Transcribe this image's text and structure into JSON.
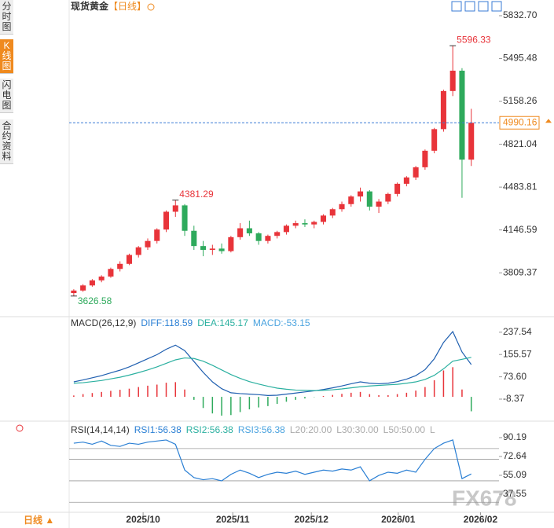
{
  "header": {
    "title": "现货黄金",
    "period": "【日线】"
  },
  "sidebar": {
    "tabs": [
      "分时图",
      "K线图",
      "闪电图",
      "合约资料"
    ]
  },
  "footer": {
    "period": "日线 ▲"
  },
  "watermark": "FX678",
  "chart_data": [
    {
      "type": "candlestick",
      "xlim": [
        -0.5,
        46
      ],
      "ylim": [
        3483,
        5882
      ],
      "yticks": [
        {
          "value": 5832.7,
          "label": "5832.70"
        },
        5495.48,
        5158.26,
        4821.04,
        4483.81,
        4146.59,
        3809.37
      ],
      "open": [
        3650,
        3670,
        3710,
        3750,
        3780,
        3840,
        3880,
        3950,
        4010,
        4060,
        4150,
        4290,
        4340,
        4140,
        4020,
        3990,
        4000,
        3980,
        4090,
        4160,
        4120,
        4060,
        4100,
        4130,
        4180,
        4200,
        4190,
        4210,
        4260,
        4310,
        4350,
        4410,
        4450,
        4330,
        4370,
        4430,
        4510,
        4560,
        4640,
        4770,
        4940,
        5240,
        5400,
        4700
      ],
      "high": [
        3680,
        3720,
        3760,
        3790,
        3850,
        3900,
        3960,
        4020,
        4080,
        4160,
        4300,
        4381.29,
        4350,
        4180,
        4060,
        4030,
        4040,
        4100,
        4200,
        4220,
        4130,
        4110,
        4140,
        4190,
        4220,
        4230,
        4220,
        4270,
        4320,
        4370,
        4420,
        4480,
        4460,
        4390,
        4440,
        4520,
        4570,
        4650,
        4780,
        4950,
        5250,
        5596.33,
        5420,
        5100
      ],
      "low": [
        3626.58,
        3660,
        3700,
        3735,
        3770,
        3820,
        3870,
        3930,
        3990,
        4040,
        4130,
        4250,
        4100,
        3990,
        3940,
        3950,
        3960,
        3970,
        4070,
        4100,
        4030,
        4040,
        4080,
        4110,
        4160,
        4170,
        4160,
        4190,
        4240,
        4290,
        4330,
        4370,
        4300,
        4280,
        4350,
        4410,
        4490,
        4540,
        4620,
        4750,
        4920,
        5200,
        4400,
        4650
      ],
      "close": [
        3670,
        3710,
        3750,
        3780,
        3840,
        3880,
        3950,
        4010,
        4060,
        4150,
        4290,
        4340,
        4140,
        4020,
        3990,
        4000,
        3980,
        4090,
        4160,
        4120,
        4060,
        4100,
        4130,
        4180,
        4200,
        4190,
        4210,
        4260,
        4310,
        4350,
        4410,
        4450,
        4330,
        4370,
        4430,
        4510,
        4560,
        4640,
        4770,
        4940,
        5240,
        5400,
        4700,
        4990.16
      ],
      "up_color": "#e8343a",
      "down_color": "#2eaa5c",
      "last_price_line": true,
      "last_price_color": "#ef8a1f",
      "annotations": [
        {
          "value": 5596.33,
          "color": "#e8343a"
        },
        {
          "value": 4381.29,
          "color": "#e8343a"
        },
        {
          "value": 3626.58,
          "color": "#2eaa5c"
        }
      ]
    },
    {
      "type": "macd",
      "xlim": [
        -0.5,
        46
      ],
      "ylim": [
        -72,
        289
      ],
      "yticks": [
        237.54,
        155.57,
        {
          "value": 73.6,
          "label": "73.60"
        },
        -8.37
      ],
      "legend_items": [
        {
          "text": "MACD(26,12,9)",
          "color": "#333333"
        },
        {
          "text": "DIFF:118.59",
          "color": "#2a7fd4"
        },
        {
          "text": "DEA:145.17",
          "color": "#2bb0a0"
        },
        {
          "text": "MACD:-53.15",
          "color": "#4aa3df"
        }
      ],
      "series": [
        {
          "color": "#1f5fb0",
          "values": [
            55,
            62,
            70,
            78,
            88,
            98,
            110,
            125,
            140,
            155,
            175,
            190,
            170,
            130,
            90,
            55,
            30,
            15,
            12,
            10,
            8,
            5,
            6,
            10,
            14,
            18,
            22,
            27,
            33,
            40,
            48,
            55,
            50,
            48,
            50,
            56,
            65,
            78,
            100,
            140,
            200,
            240,
            165,
            118.59
          ]
        },
        {
          "color": "#2bb0a0",
          "values": [
            50,
            52,
            56,
            60,
            66,
            72,
            80,
            89,
            99,
            110,
            123,
            136,
            143,
            141,
            131,
            116,
            99,
            82,
            68,
            56,
            47,
            39,
            32,
            28,
            25,
            24,
            23,
            24,
            26,
            29,
            33,
            37,
            40,
            42,
            44,
            46,
            50,
            55,
            64,
            79,
            103,
            131,
            138,
            145.17
          ]
        }
      ],
      "histogram": {
        "up_color": "#e8343a",
        "down_color": "#2eaa5c",
        "values": [
          5,
          10,
          14,
          18,
          22,
          26,
          30,
          36,
          41,
          45,
          52,
          54,
          27,
          -11,
          -41,
          -61,
          -69,
          -67,
          -56,
          -46,
          -39,
          -34,
          -26,
          -18,
          -11,
          -6,
          -1,
          3,
          7,
          11,
          15,
          18,
          10,
          6,
          6,
          10,
          15,
          23,
          36,
          61,
          97,
          109,
          27,
          -53.15
        ]
      }
    },
    {
      "type": "line",
      "xlim": [
        -0.5,
        46
      ],
      "ylim": [
        20.7,
        102.6
      ],
      "yticks": [
        90.19,
        72.64,
        55.09,
        37.55
      ],
      "xticks": [
        {
          "value": 7.5,
          "label": "2025/10"
        },
        {
          "value": 17.2,
          "label": "2025/11"
        },
        {
          "value": 25.7,
          "label": "2025/12"
        },
        {
          "value": 35.1,
          "label": "2026/01"
        },
        {
          "value": 44,
          "label": "2026/02"
        }
      ],
      "legend_items": [
        {
          "text": "RSI(14,14,14)",
          "color": "#333333"
        },
        {
          "text": "RSI1:56.38",
          "color": "#2a7fd4"
        },
        {
          "text": "RSI2:56.38",
          "color": "#2bb0a0"
        },
        {
          "text": "RSI3:56.38",
          "color": "#4aa3df"
        },
        {
          "text": "L20:20.00",
          "color": "#aaaaaa"
        },
        {
          "text": "L30:30.00",
          "color": "#aaaaaa"
        },
        {
          "text": "L50:50.00",
          "color": "#aaaaaa"
        },
        {
          "text": "L",
          "color": "#aaaaaa"
        }
      ],
      "reference_lines": [
        80,
        70,
        50,
        30
      ],
      "series": [
        {
          "color": "#2a7fd4",
          "values": [
            85,
            86,
            84,
            87,
            83,
            82,
            85,
            84,
            86,
            87,
            88,
            84,
            60,
            53,
            51,
            52,
            50,
            56,
            60,
            57,
            53,
            56,
            58,
            57,
            59,
            56,
            58,
            60,
            59,
            61,
            60,
            63,
            50,
            55,
            58,
            57,
            60,
            58,
            70,
            80,
            85,
            88,
            52,
            56.38
          ]
        }
      ]
    }
  ]
}
